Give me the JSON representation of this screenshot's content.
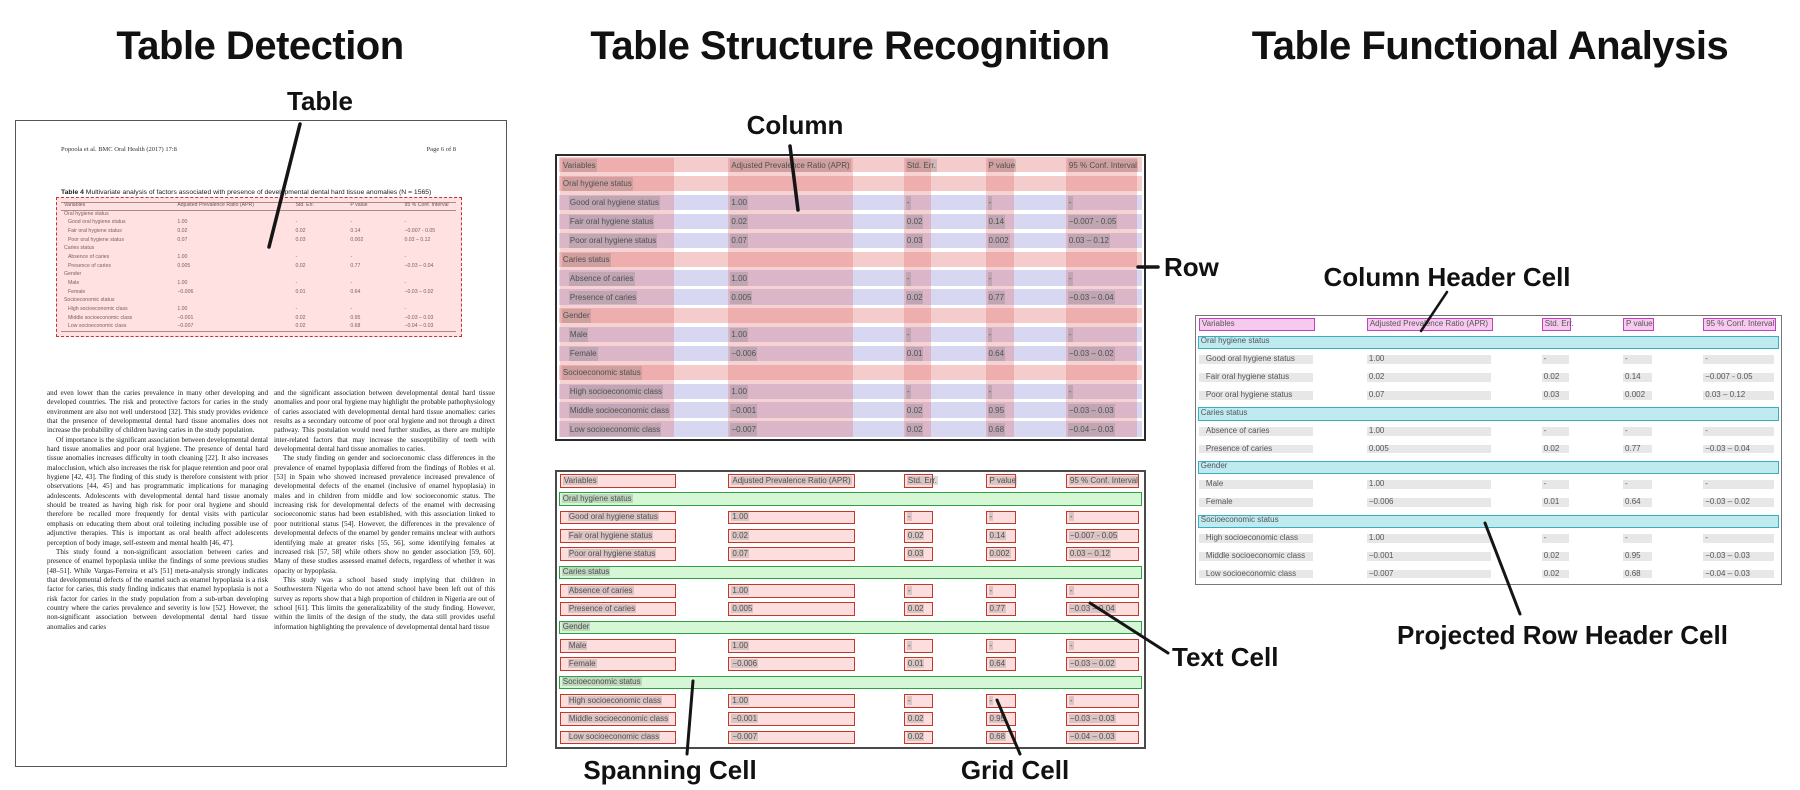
{
  "titles": {
    "detection": "Table Detection",
    "structure": "Table Structure Recognition",
    "functional": "Table Functional Analysis"
  },
  "callouts": {
    "table": "Table",
    "column": "Column",
    "row": "Row",
    "column_header_cell": "Column Header Cell",
    "projected_row_header_cell": "Projected Row Header Cell",
    "text_cell": "Text Cell",
    "spanning_cell": "Spanning Cell",
    "grid_cell": "Grid Cell"
  },
  "document": {
    "header_left": "Popoola et al. BMC Oral Health  (2017) 17:8",
    "header_right": "Page 6 of 8",
    "table_caption_label": "Table 4",
    "table_caption": " Multivariate analysis of factors associated with presence of developmental dental hard tissue anomalies (N = 1565)",
    "body_left": [
      "and even lower than the caries prevalence in many other developing and developed countries. The risk and protective factors for caries in the study environment are also not well understood [32]. This study provides evidence that the presence of developmental dental hard tissue anomalies does not increase the probability of children having caries in the study population.",
      "Of importance is the significant association between developmental dental hard tissue anomalies and poor oral hygiene. The presence of dental hard tissue anomalies increases difficulty in tooth cleaning [22]. It also increases malocclusion, which also increases the risk for plaque retention and poor oral hygiene [42, 43]. The finding of this study is therefore consistent with prior observations [44, 45] and has programmatic implications for managing adolescents. Adolescents with developmental dental hard tissue anomaly should be treated as having high risk for poor oral hygiene and should therefore be recalled more frequently for dental visits with particular emphasis on educating them about oral toileting including possible use of adjunctive therapies. This is important as oral health affect adolescents perception of body image, self-esteem and mental health [46, 47].",
      "This study found a non-significant association between caries and presence of enamel hypoplasia unlike the findings of some previous studies [48–51]. While Vargas-Ferreira et al's [51] meta-analysis strongly indicates that developmental defects of the enamel such as enamel hypoplasia is a risk factor for caries, this study finding indicates that enamel hypoplasia is not a risk factor for caries in the study population from a sub-urban developing country where the caries prevalence and severity is low [52]. However, the non-significant association between developmental dental hard tissue anomalies and caries"
    ],
    "body_right": [
      "and the significant association between developmental dental hard tissue anomalies and poor oral hygiene may highlight the probable pathophysiology of caries associated with developmental dental hard tissue anomalies: caries results as a secondary outcome of poor oral hygiene and not through a direct pathway. This postulation would need further studies, as there are multiple inter-related factors that may increase the susceptibility of teeth with developmental dental hard tissue anomalies to caries.",
      "The study finding on gender and socioeconomic class differences in the prevalence of enamel hypoplasia differed from the findings of Robles et al. [53] in Spain who showed increased prevalence increased prevalence of developmental defects of the enamel (inclusive of enamel hypoplasia) in males and in children from middle and low socioeconomic status. The increasing risk for developmental defects of the enamel with decreasing socioeconomic status had been established, with this association linked to poor nutritional status [54]. However, the differences in the prevalence of developmental defects of the enamel by gender remains unclear with authors identifying male at greater risks [55, 56], some identifying females at increased risk [57, 58] while others show no gender association [59, 60]. Many of these studies assessed enamel defects, regardless of whether it was opacity or hypoplasia.",
      "This study was a school based study implying that children in Southwestern Nigeria who do not attend school have been left out of this survey as reports show that a high proportion of children in Nigeria are out of school [61]. This limits the generalizability of the study finding. However, within the limits of the design of the study, the data still provides useful information highlighting the prevalence of developmental dental hard tissue"
    ]
  },
  "table": {
    "columns": [
      "Variables",
      "Adjusted Prevalence Ratio (APR)",
      "Std. Err.",
      "P value",
      "95 % Conf. Interval"
    ],
    "rows": [
      {
        "type": "section",
        "label": "Oral hygiene status"
      },
      {
        "type": "data",
        "label": "Good oral hygiene status",
        "values": [
          "1.00",
          "-",
          "-",
          "-"
        ]
      },
      {
        "type": "data",
        "label": "Fair oral hygiene status",
        "values": [
          "0.02",
          "0.02",
          "0.14",
          "−0.007 - 0.05"
        ]
      },
      {
        "type": "data",
        "label": "Poor oral hygiene status",
        "values": [
          "0.07",
          "0.03",
          "0.002",
          "0.03 – 0.12"
        ]
      },
      {
        "type": "section",
        "label": "Caries status"
      },
      {
        "type": "data",
        "label": "Absence of caries",
        "values": [
          "1.00",
          "-",
          "-",
          "-"
        ]
      },
      {
        "type": "data",
        "label": "Presence of caries",
        "values": [
          "0.005",
          "0.02",
          "0.77",
          "−0.03 – 0.04"
        ]
      },
      {
        "type": "section",
        "label": "Gender"
      },
      {
        "type": "data",
        "label": "Male",
        "values": [
          "1.00",
          "-",
          "-",
          "-"
        ]
      },
      {
        "type": "data",
        "label": "Female",
        "values": [
          "−0.006",
          "0.01",
          "0.64",
          "−0.03 – 0.02"
        ]
      },
      {
        "type": "section",
        "label": "Socioeconomic status"
      },
      {
        "type": "data",
        "label": "High socioeconomic class",
        "values": [
          "1.00",
          "-",
          "-",
          "-"
        ]
      },
      {
        "type": "data",
        "label": "Middle socioeconomic class",
        "values": [
          "−0.001",
          "0.02",
          "0.95",
          "−0.03 – 0.03"
        ]
      },
      {
        "type": "data",
        "label": "Low socioeconomic class",
        "values": [
          "−0.007",
          "0.02",
          "0.68",
          "−0.04 – 0.03"
        ]
      }
    ]
  },
  "colors": {
    "detection_fill": "rgba(255,70,70,0.16)",
    "detection_border": "#c43434",
    "column_overlay": "rgba(224,106,106,0.30)",
    "row_overlay_data": "rgba(140,140,215,0.35)",
    "row_overlay_header": "rgba(225,110,110,0.35)",
    "grid_cell_border": "#c0392b",
    "grid_cell_fill": "rgba(250,160,160,0.35)",
    "spanning_border": "#2f9e44",
    "spanning_fill": "rgba(180,240,180,0.55)",
    "header_cell_border": "#c040c0",
    "header_cell_fill": "#f6c9ee",
    "projected_row_fill": "#bfeaf0",
    "projected_row_border": "#38aebe",
    "data_bar_fill": "#e7e7e7",
    "text_highlight": "rgba(120,120,120,0.26)"
  }
}
